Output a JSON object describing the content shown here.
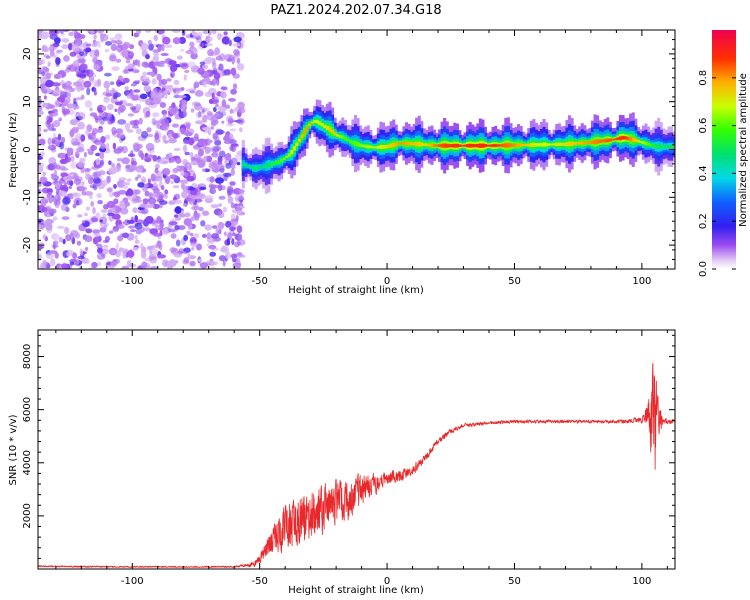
{
  "figure": {
    "title": "PAZ1.2024.202.07.34.G18"
  },
  "chart_data": [
    {
      "type": "heatmap",
      "panel": "spectrogram",
      "xlabel": "Height of straight line (km)",
      "ylabel": "Frequency (Hz)",
      "xlim": [
        -137,
        113
      ],
      "ylim": [
        -25,
        25
      ],
      "xticks": [
        -100,
        -50,
        0,
        50,
        100
      ],
      "yticks": [
        -20,
        -10,
        0,
        10,
        20
      ],
      "colorbar": {
        "label": "Normalized spectral amplitude",
        "range": [
          0,
          1
        ],
        "ticks": [
          0.0,
          0.2,
          0.4,
          0.6,
          0.8
        ]
      },
      "noise_region_x": [
        -137,
        -57
      ],
      "ridge": {
        "x": [
          -57,
          -52,
          -48,
          -45,
          -42,
          -38,
          -35,
          -32,
          -30,
          -28,
          -25,
          -22,
          -20,
          -17,
          -14,
          -10,
          -5,
          0,
          5,
          10,
          15,
          20,
          30,
          40,
          50,
          60,
          70,
          80,
          88,
          93,
          97,
          100,
          103,
          106,
          110,
          113
        ],
        "y": [
          -3,
          -4,
          -3.5,
          -3,
          -2.5,
          -1,
          1.5,
          4,
          5.5,
          6,
          5,
          4,
          3,
          2.5,
          1.5,
          0.8,
          0.4,
          0.6,
          1.3,
          1.2,
          1,
          0.8,
          0.8,
          0.8,
          0.9,
          1.0,
          1.1,
          1.5,
          2,
          2.5,
          2,
          1.5,
          1,
          0.6,
          0.6,
          0.6
        ],
        "amp": [
          0.45,
          0.5,
          0.45,
          0.55,
          0.6,
          0.7,
          0.75,
          0.85,
          0.8,
          0.7,
          0.7,
          0.8,
          0.75,
          0.6,
          0.6,
          0.65,
          0.7,
          0.75,
          0.85,
          0.8,
          0.75,
          0.9,
          0.95,
          0.95,
          0.85,
          0.7,
          0.75,
          0.85,
          0.9,
          0.95,
          0.8,
          0.7,
          0.6,
          0.5,
          0.5,
          0.5
        ]
      }
    },
    {
      "type": "line",
      "panel": "snr",
      "xlabel": "Height of straight line (km)",
      "ylabel": "SNR (10 * v/v)",
      "xlim": [
        -137,
        113
      ],
      "ylim": [
        0,
        9000
      ],
      "xticks": [
        -100,
        -50,
        0,
        50,
        100
      ],
      "yticks": [
        2000,
        4000,
        6000,
        8000
      ],
      "line_color": "#e8282a",
      "series": [
        {
          "envelope_x": [
            -137,
            -100,
            -60,
            -55,
            -52,
            -50,
            -45,
            -40,
            -35,
            -30,
            -25,
            -20,
            -15,
            -10,
            -5,
            0,
            5,
            10,
            15,
            20,
            25,
            30,
            40,
            50,
            60,
            70,
            80,
            90,
            100,
            103,
            104,
            105,
            106,
            108,
            113
          ],
          "envelope_y": [
            100,
            80,
            80,
            150,
            200,
            400,
            1000,
            1600,
            1800,
            1900,
            2200,
            2500,
            2600,
            3000,
            3200,
            3400,
            3500,
            3700,
            4200,
            4800,
            5200,
            5400,
            5500,
            5550,
            5550,
            5550,
            5550,
            5550,
            5600,
            5800,
            5400,
            5600,
            5700,
            5550,
            5550
          ],
          "amplitude": [
            40,
            40,
            40,
            80,
            150,
            250,
            700,
            1100,
            1200,
            1200,
            1100,
            1000,
            900,
            700,
            500,
            350,
            300,
            250,
            200,
            150,
            120,
            100,
            80,
            80,
            80,
            80,
            80,
            80,
            150,
            900,
            2500,
            3000,
            1200,
            200,
            100
          ]
        }
      ]
    }
  ]
}
